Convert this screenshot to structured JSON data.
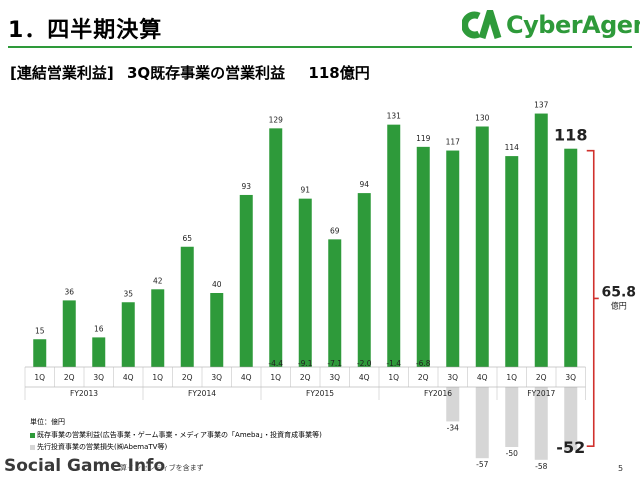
{
  "header": {
    "title": "1．四半期決算",
    "logo_text": "CyberAgent."
  },
  "subtitle": {
    "bracket": "[連結営業利益]",
    "text": "3Q既存事業の営業利益",
    "total": "118億円"
  },
  "chart_data": {
    "type": "bar",
    "categories": [
      "1Q",
      "2Q",
      "3Q",
      "4Q",
      "1Q",
      "2Q",
      "3Q",
      "4Q",
      "1Q",
      "2Q",
      "3Q",
      "4Q",
      "1Q",
      "2Q",
      "3Q",
      "4Q",
      "1Q",
      "2Q",
      "3Q"
    ],
    "fiscal_years": [
      {
        "label": "FY2013",
        "start": 0,
        "end": 3
      },
      {
        "label": "FY2014",
        "start": 4,
        "end": 7
      },
      {
        "label": "FY2015",
        "start": 8,
        "end": 11
      },
      {
        "label": "FY2016",
        "start": 12,
        "end": 15
      },
      {
        "label": "FY2017",
        "start": 16,
        "end": 18
      }
    ],
    "series": [
      {
        "name": "既存事業の営業利益(広告事業・ゲーム事業・メディア事業の「Ameba」・投資育成事業等)",
        "color": "#2e9a3a",
        "values": [
          15,
          36,
          16,
          35,
          42,
          65,
          40,
          93,
          129,
          91,
          69,
          94,
          131,
          119,
          117,
          130,
          114,
          137,
          118
        ],
        "labels": [
          "15",
          "36",
          "16",
          "35",
          "42",
          "65",
          "40",
          "93",
          "129",
          "91",
          "69",
          "94",
          "131",
          "119",
          "117",
          "130",
          "114",
          "137",
          "118"
        ]
      },
      {
        "name": "先行投資事業の営業損失(㈱AbemaTV等)",
        "color": "#d6d6d6",
        "values": [
          null,
          null,
          null,
          null,
          null,
          null,
          null,
          null,
          -4.4,
          -9.1,
          -7.1,
          -2.0,
          -1.4,
          -6.8,
          -34,
          -57,
          -50,
          -58,
          -52
        ],
        "labels": [
          "",
          "",
          "",
          "",
          "",
          "",
          "",
          "",
          "-4.4",
          "-9.1",
          "-7.1",
          "-2.0",
          "-1.4",
          "-6.8",
          "-34",
          "-57",
          "-50",
          "-58",
          "-52"
        ]
      }
    ],
    "ylim": [
      -60,
      140
    ],
    "bracket_annotation": {
      "value": "65.8",
      "unit": "億円"
    }
  },
  "footer": {
    "unit": "単位：億円",
    "watermark": "Social Game Info",
    "note_fragment": "算インセンティブを含まず",
    "page": "5"
  }
}
